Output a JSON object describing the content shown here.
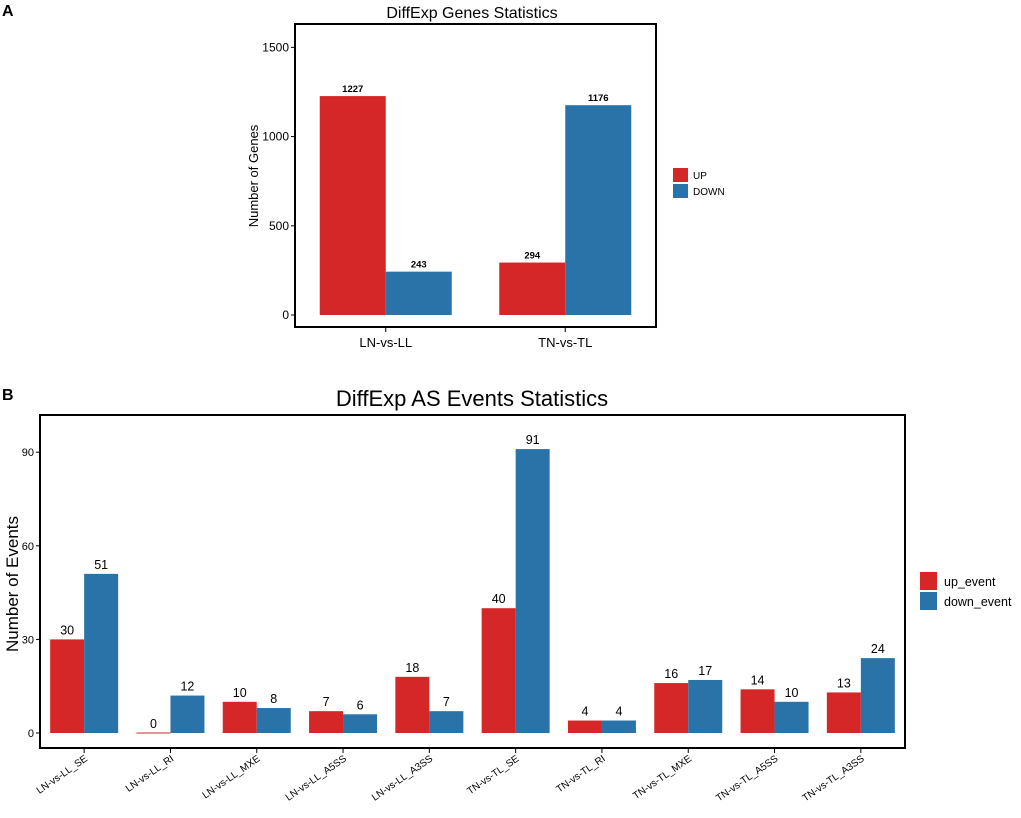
{
  "panel_a_letter": "A",
  "panel_b_letter": "B",
  "chart_data": [
    {
      "type": "bar",
      "title": "DiffExp Genes Statistics",
      "xlabel": "",
      "ylabel": "Number of Genes",
      "categories": [
        "LN-vs-LL",
        "TN-vs-TL"
      ],
      "series": [
        {
          "name": "UP",
          "color": "#d62728",
          "values": [
            1227,
            294
          ]
        },
        {
          "name": "DOWN",
          "color": "#2a73a8",
          "values": [
            243,
            1176
          ]
        }
      ],
      "ylim": [
        0,
        1575
      ],
      "yticks": [
        0,
        500,
        1000,
        1500
      ],
      "ytick_labels": [
        "0",
        "500",
        "1000",
        "1500"
      ],
      "data_labels": [
        [
          "1227",
          "294"
        ],
        [
          "243",
          "1176"
        ]
      ],
      "grid": false,
      "legend": "right"
    },
    {
      "type": "bar",
      "title": "DiffExp AS Events Statistics",
      "xlabel": "",
      "ylabel": "Number of Events",
      "categories": [
        "LN-vs-LL_SE",
        "LN-vs-LL_RI",
        "LN-vs-LL_MXE",
        "LN-vs-LL_A5SS",
        "LN-vs-LL_A3SS",
        "TN-vs-TL_SE",
        "TN-vs-TL_RI",
        "TN-vs-TL_MXE",
        "TN-vs-TL_A5SS",
        "TN-vs-TL_A3SS"
      ],
      "series": [
        {
          "name": "up_event",
          "color": "#d62728",
          "values": [
            30,
            0,
            10,
            7,
            18,
            40,
            4,
            16,
            14,
            13
          ]
        },
        {
          "name": "down_event",
          "color": "#2a73a8",
          "values": [
            51,
            12,
            8,
            6,
            7,
            91,
            4,
            17,
            10,
            24
          ]
        }
      ],
      "ylim": [
        0,
        100
      ],
      "yticks": [
        0,
        30,
        60,
        90
      ],
      "ytick_labels": [
        "0",
        "30",
        "60",
        "90"
      ],
      "data_labels": [
        [
          "30",
          "0",
          "10",
          "7",
          "18",
          "40",
          "4",
          "16",
          "14",
          "13"
        ],
        [
          "51",
          "12",
          "8",
          "6",
          "7",
          "91",
          "4",
          "17",
          "10",
          "24"
        ]
      ],
      "grid": false,
      "legend": "right"
    }
  ]
}
